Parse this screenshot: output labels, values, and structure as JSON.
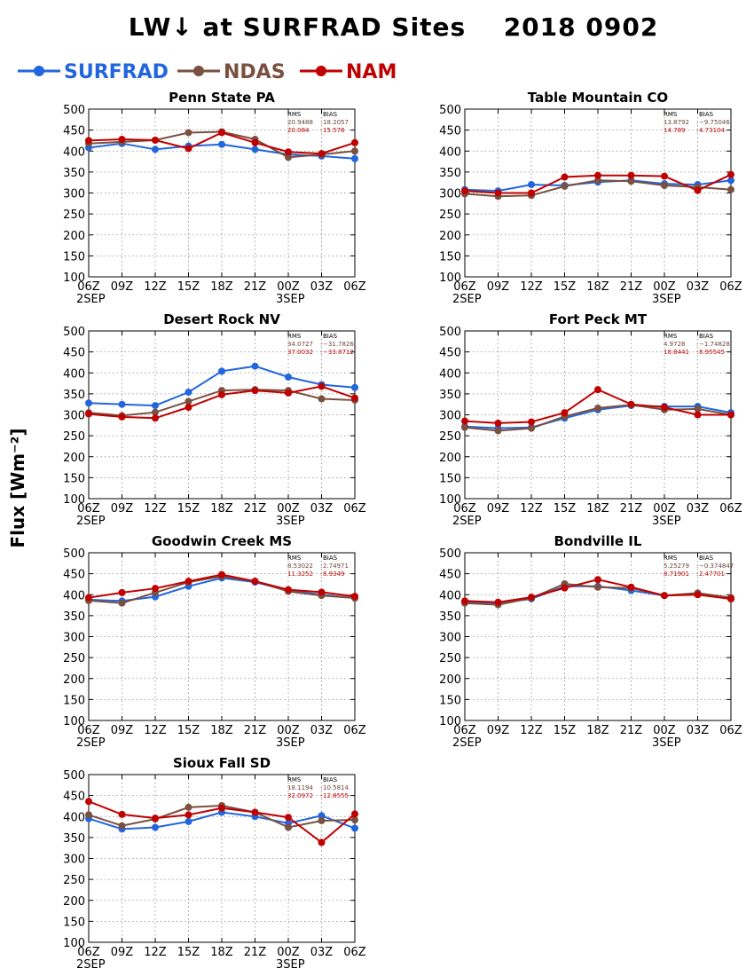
{
  "page": {
    "title_left": "LW↓ at SURFRAD Sites",
    "title_right": "2018 0902",
    "ylabel": "Flux [Wm⁻²]"
  },
  "legend": [
    {
      "name": "SURFRAD",
      "color": "#2266dd"
    },
    {
      "name": "NDAS",
      "color": "#7a5040"
    },
    {
      "name": "NAM",
      "color": "#c00000"
    }
  ],
  "chart_data": [
    {
      "type": "line",
      "title": "Penn State PA",
      "x": [
        "06Z",
        "09Z",
        "12Z",
        "15Z",
        "18Z",
        "21Z",
        "00Z",
        "03Z",
        "06Z"
      ],
      "date_labels": [
        "2SEP",
        "3SEP"
      ],
      "ylim": [
        100,
        500
      ],
      "yticks": [
        100,
        150,
        200,
        250,
        300,
        350,
        400,
        450,
        500
      ],
      "grid": true,
      "stats": {
        "rms_label": "RMS",
        "bias_label": "BIAS",
        "ndas": [
          "20.9488",
          "18.2057"
        ],
        "nam": [
          "20.084",
          "15.578"
        ]
      },
      "series": [
        {
          "name": "SURFRAD",
          "values": [
            408,
            418,
            404,
            412,
            416,
            404,
            392,
            388,
            382
          ]
        },
        {
          "name": "NDAS",
          "values": [
            418,
            422,
            426,
            444,
            446,
            428,
            385,
            392,
            400
          ]
        },
        {
          "name": "NAM",
          "values": [
            425,
            428,
            426,
            406,
            444,
            420,
            398,
            394,
            420
          ]
        }
      ]
    },
    {
      "type": "line",
      "title": "Table Mountain CO",
      "x": [
        "06Z",
        "09Z",
        "12Z",
        "15Z",
        "18Z",
        "21Z",
        "00Z",
        "03Z",
        "06Z"
      ],
      "date_labels": [
        "2SEP",
        "3SEP"
      ],
      "ylim": [
        100,
        500
      ],
      "yticks": [
        100,
        150,
        200,
        250,
        300,
        350,
        400,
        450,
        500
      ],
      "grid": true,
      "stats": {
        "rms_label": "RMS",
        "bias_label": "BIAS",
        "ndas": [
          "13.8792",
          "−9.75046"
        ],
        "nam": [
          "14.789",
          "4.73104"
        ]
      },
      "series": [
        {
          "name": "SURFRAD",
          "values": [
            308,
            305,
            320,
            318,
            326,
            330,
            322,
            320,
            330
          ]
        },
        {
          "name": "NDAS",
          "values": [
            298,
            292,
            294,
            316,
            330,
            328,
            318,
            314,
            308
          ]
        },
        {
          "name": "NAM",
          "values": [
            305,
            300,
            300,
            338,
            342,
            342,
            340,
            306,
            344
          ]
        }
      ]
    },
    {
      "type": "line",
      "title": "Desert Rock NV",
      "x": [
        "06Z",
        "09Z",
        "12Z",
        "15Z",
        "18Z",
        "21Z",
        "00Z",
        "03Z",
        "06Z"
      ],
      "date_labels": [
        "2SEP",
        "3SEP"
      ],
      "ylim": [
        100,
        500
      ],
      "yticks": [
        100,
        150,
        200,
        250,
        300,
        350,
        400,
        450,
        500
      ],
      "grid": true,
      "stats": {
        "rms_label": "RMS",
        "bias_label": "BIAS",
        "ndas": [
          "34.0727",
          "−31.7826"
        ],
        "nam": [
          "37.0032",
          "−33.8712"
        ]
      },
      "series": [
        {
          "name": "SURFRAD",
          "values": [
            328,
            325,
            322,
            354,
            404,
            416,
            390,
            372,
            365
          ]
        },
        {
          "name": "NDAS",
          "values": [
            305,
            298,
            306,
            332,
            358,
            360,
            358,
            338,
            335
          ]
        },
        {
          "name": "NAM",
          "values": [
            302,
            295,
            292,
            318,
            348,
            358,
            352,
            368,
            340
          ]
        }
      ]
    },
    {
      "type": "line",
      "title": "Fort Peck MT",
      "x": [
        "06Z",
        "09Z",
        "12Z",
        "15Z",
        "18Z",
        "21Z",
        "00Z",
        "03Z",
        "06Z"
      ],
      "date_labels": [
        "2SEP",
        "3SEP"
      ],
      "ylim": [
        100,
        500
      ],
      "yticks": [
        100,
        150,
        200,
        250,
        300,
        350,
        400,
        450,
        500
      ],
      "grid": true,
      "stats": {
        "rms_label": "RMS",
        "bias_label": "BIAS",
        "ndas": [
          "4.9728",
          "−1.74828"
        ],
        "nam": [
          "18.8441",
          "8.95545"
        ]
      },
      "series": [
        {
          "name": "SURFRAD",
          "values": [
            272,
            268,
            270,
            292,
            312,
            322,
            320,
            320,
            305
          ]
        },
        {
          "name": "NDAS",
          "values": [
            270,
            262,
            268,
            296,
            316,
            324,
            312,
            314,
            300
          ]
        },
        {
          "name": "NAM",
          "values": [
            285,
            280,
            283,
            305,
            360,
            325,
            318,
            300,
            300
          ]
        }
      ]
    },
    {
      "type": "line",
      "title": "Goodwin Creek MS",
      "x": [
        "06Z",
        "09Z",
        "12Z",
        "15Z",
        "18Z",
        "21Z",
        "00Z",
        "03Z",
        "06Z"
      ],
      "date_labels": [
        "2SEP",
        "3SEP"
      ],
      "ylim": [
        100,
        500
      ],
      "yticks": [
        100,
        150,
        200,
        250,
        300,
        350,
        400,
        450,
        500
      ],
      "grid": true,
      "stats": {
        "rms_label": "RMS",
        "bias_label": "BIAS",
        "ndas": [
          "8.53022",
          "2.74971"
        ],
        "nam": [
          "11.3252",
          "8.9349"
        ]
      },
      "series": [
        {
          "name": "SURFRAD",
          "values": [
            388,
            385,
            395,
            420,
            440,
            430,
            410,
            400,
            392
          ]
        },
        {
          "name": "NDAS",
          "values": [
            386,
            380,
            405,
            430,
            444,
            432,
            408,
            398,
            392
          ]
        },
        {
          "name": "NAM",
          "values": [
            393,
            405,
            415,
            432,
            448,
            432,
            412,
            406,
            396
          ]
        }
      ]
    },
    {
      "type": "line",
      "title": "Bondville IL",
      "x": [
        "06Z",
        "09Z",
        "12Z",
        "15Z",
        "18Z",
        "21Z",
        "00Z",
        "03Z",
        "06Z"
      ],
      "date_labels": [
        "2SEP",
        "3SEP"
      ],
      "ylim": [
        100,
        500
      ],
      "yticks": [
        100,
        150,
        200,
        250,
        300,
        350,
        400,
        450,
        500
      ],
      "grid": true,
      "stats": {
        "rms_label": "RMS",
        "bias_label": "BIAS",
        "ndas": [
          "5.25279",
          "−0.374847"
        ],
        "nam": [
          "8.71901",
          "2.47701"
        ]
      },
      "series": [
        {
          "name": "SURFRAD",
          "values": [
            383,
            380,
            390,
            420,
            420,
            410,
            398,
            402,
            390
          ]
        },
        {
          "name": "NDAS",
          "values": [
            380,
            376,
            392,
            426,
            418,
            416,
            398,
            404,
            393
          ]
        },
        {
          "name": "NAM",
          "values": [
            385,
            382,
            394,
            416,
            436,
            418,
            398,
            400,
            390
          ]
        }
      ]
    },
    {
      "type": "line",
      "title": "Sioux Fall SD",
      "x": [
        "06Z",
        "09Z",
        "12Z",
        "15Z",
        "18Z",
        "21Z",
        "00Z",
        "03Z",
        "06Z"
      ],
      "date_labels": [
        "2SEP",
        "3SEP"
      ],
      "ylim": [
        100,
        500
      ],
      "yticks": [
        100,
        150,
        200,
        250,
        300,
        350,
        400,
        450,
        500
      ],
      "grid": true,
      "stats": {
        "rms_label": "RMS",
        "bias_label": "BIAS",
        "ndas": [
          "18.1194",
          "10.5814"
        ],
        "nam": [
          "32.0972",
          "12.8555"
        ]
      },
      "series": [
        {
          "name": "SURFRAD",
          "values": [
            395,
            370,
            374,
            388,
            410,
            400,
            384,
            402,
            372
          ]
        },
        {
          "name": "NDAS",
          "values": [
            404,
            378,
            394,
            422,
            426,
            410,
            374,
            390,
            392
          ]
        },
        {
          "name": "NAM",
          "values": [
            436,
            405,
            396,
            404,
            420,
            410,
            398,
            338,
            406
          ]
        }
      ]
    }
  ]
}
